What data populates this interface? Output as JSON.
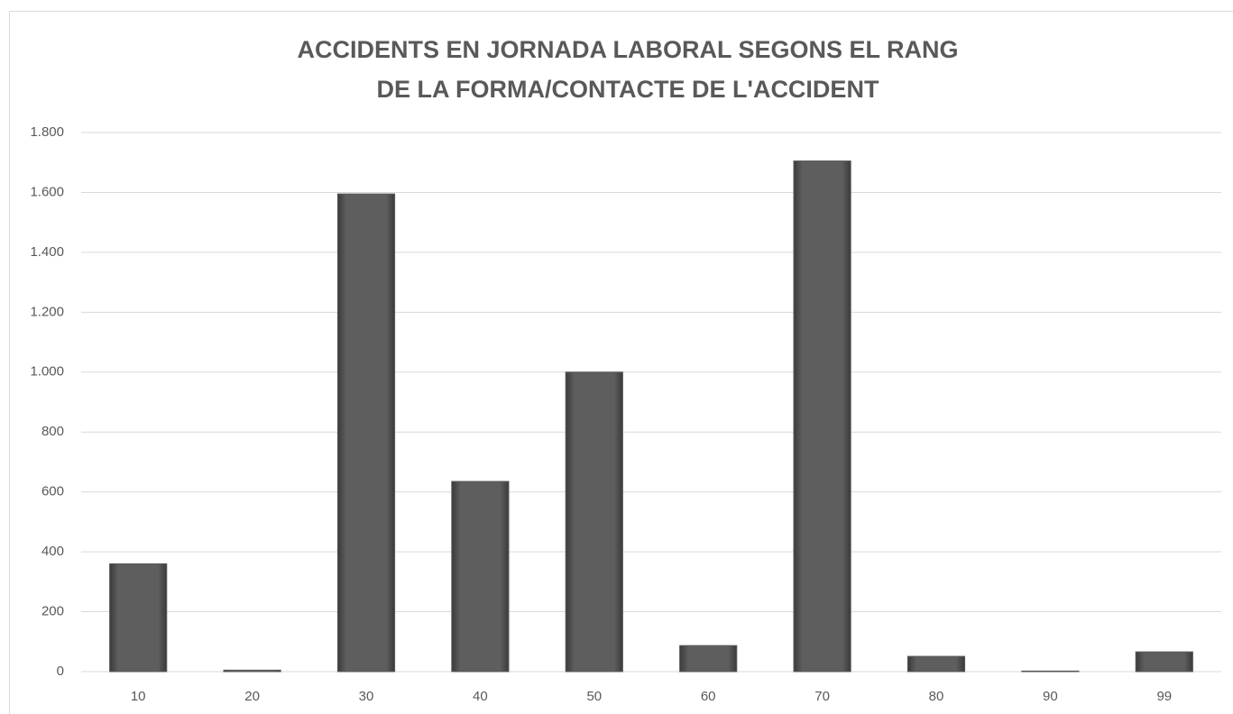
{
  "chart_data": {
    "type": "bar",
    "title": [
      "ACCIDENTS EN JORNADA LABORAL SEGONS EL RANG",
      "DE LA FORMA/CONTACTE DE L'ACCIDENT"
    ],
    "categories": [
      "10",
      "20",
      "30",
      "40",
      "50",
      "60",
      "70",
      "80",
      "90",
      "99"
    ],
    "values": [
      360,
      5,
      1595,
      635,
      1000,
      87,
      1705,
      51,
      2,
      66
    ],
    "color": "#5a5a5a",
    "ylim": [
      0,
      1800
    ],
    "yticks": [
      0,
      200,
      400,
      600,
      800,
      {
        "value": 1000,
        "label": "1.000"
      },
      {
        "value": 1200,
        "label": "1.200"
      },
      {
        "value": 1400,
        "label": "1.400"
      },
      {
        "value": 1600,
        "label": "1.600"
      },
      {
        "value": 1800,
        "label": "1.800"
      }
    ],
    "grid": true
  }
}
